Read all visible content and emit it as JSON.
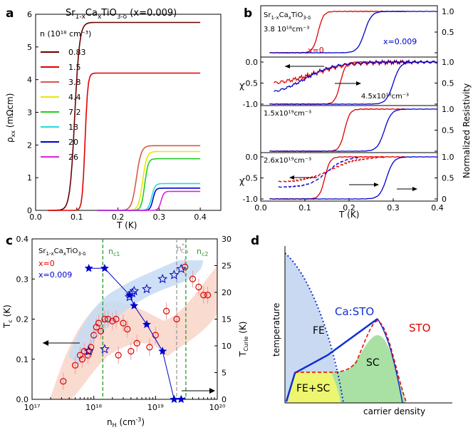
{
  "panel_labels": [
    "a",
    "b",
    "c",
    "d"
  ],
  "chart_data": [
    {
      "id": "a",
      "type": "line",
      "title": "Sr1-xCaxTiO3-δ (x=0.009)",
      "title_parts": {
        "base": "Sr",
        "sub1": "1-x",
        "mid": "Ca",
        "sub2": "x",
        "mid2": "TiO",
        "sub3": "3-δ",
        "tail": " (x=0.009)"
      },
      "xlabel": "T (K)",
      "ylabel": "ρxx (mΩcm)",
      "ylabel_parts": {
        "base": "ρ",
        "sub": "xx",
        "tail": " (mΩcm)"
      },
      "xlim": [
        0,
        0.45
      ],
      "ylim": [
        0,
        6
      ],
      "xticks": [
        0.0,
        0.1,
        0.2,
        0.3,
        0.4
      ],
      "xtick_labels": [
        "0.0",
        "0.1",
        "0.2",
        "0.3",
        "0.4"
      ],
      "yticks": [
        0,
        1,
        2,
        3,
        4,
        5,
        6
      ],
      "yticks_labels": [
        "0",
        "1",
        "2",
        "3",
        "4",
        "5",
        "6"
      ],
      "legend_title": "n (10¹⁸ cm⁻³)",
      "series": [
        {
          "name": "0.83",
          "color": "#6b0000",
          "tc": 0.095,
          "width": 0.035,
          "rn": 5.75,
          "xstart": 0.03
        },
        {
          "name": "1.5",
          "color": "#e00000",
          "tc": 0.12,
          "width": 0.02,
          "rn": 4.2,
          "xstart": 0.03
        },
        {
          "name": "3.8",
          "color": "#d45a4a",
          "tc": 0.245,
          "width": 0.035,
          "rn": 1.98,
          "xstart": 0.15
        },
        {
          "name": "4.4",
          "color": "#e8e800",
          "tc": 0.26,
          "width": 0.03,
          "rn": 1.8,
          "xstart": 0.15
        },
        {
          "name": "7.2",
          "color": "#22cc22",
          "tc": 0.265,
          "width": 0.025,
          "rn": 1.58,
          "xstart": 0.15
        },
        {
          "name": "13",
          "color": "#22dddd",
          "tc": 0.282,
          "width": 0.025,
          "rn": 0.82,
          "xstart": 0.15
        },
        {
          "name": "20",
          "color": "#0000cc",
          "tc": 0.285,
          "width": 0.02,
          "rn": 0.68,
          "xstart": 0.15
        },
        {
          "name": "26",
          "color": "#dd22dd",
          "tc": 0.305,
          "width": 0.02,
          "rn": 0.58,
          "xstart": 0.15
        }
      ]
    },
    {
      "id": "b",
      "type": "line",
      "title": "Sr1-xCaxTiO3-δ",
      "xlabel": "T (K)",
      "ylabel_left": "χ",
      "ylabel_right": "Normalized Resistivity",
      "xlim": [
        0,
        0.4
      ],
      "xticks": [
        0.0,
        0.1,
        0.2,
        0.3,
        0.4
      ],
      "xtick_labels": [
        "0.0",
        "0.1",
        "0.2",
        "0.3",
        "0.4"
      ],
      "left_ticks": [
        "0.0",
        "-0.5",
        "-1.0"
      ],
      "right_ticks": [
        "1.0",
        "0.5",
        "0"
      ],
      "subpanels": [
        {
          "label": "3.8 10¹⁸cm⁻³",
          "r_red_tc": 0.13,
          "r_blue_tc": 0.235,
          "annotations": [
            "x=0",
            "x=0.009"
          ],
          "chi": false
        },
        {
          "label": "4.5x10¹⁸cm⁻³",
          "r_red_tc": 0.18,
          "r_blue_tc": 0.3,
          "chi": true,
          "chi_red_tc": 0.17,
          "chi_blue_tc": 0.1
        },
        {
          "label": "1.5x10¹⁹cm⁻³",
          "r_red_tc": 0.19,
          "r_blue_tc": 0.28,
          "chi": false
        },
        {
          "label": "2.6x10¹⁹cm⁻³",
          "r_red_tc": 0.145,
          "r_blue_tc": 0.285,
          "chi": true,
          "chi_red_tc": 0.14,
          "chi_blue_tc": 0.145
        }
      ]
    },
    {
      "id": "c",
      "type": "scatter",
      "title": "Sr1-xCaxTiO3-δ",
      "xlabel": "nH (cm⁻³)",
      "xlabel_parts": {
        "base": "n",
        "sub": "H",
        "tail": " (cm",
        "sup": "-3",
        "end": ")"
      },
      "ylabel_left": "Tc (K)",
      "ylabel_right": "TCurie (K)",
      "xscale": "log",
      "xlim": [
        1e+17,
        1e+20
      ],
      "ylim": [
        0,
        0.4
      ],
      "ylim_right": [
        0,
        30
      ],
      "xtick_labels": [
        "10¹⁷",
        "10¹⁸",
        "10¹⁹",
        "10²⁰"
      ],
      "ytick_labels": [
        "0.0",
        "0.1",
        "0.2",
        "0.3",
        "0.4"
      ],
      "y2tick_labels": [
        "0",
        "5",
        "10",
        "15",
        "20",
        "25",
        "30"
      ],
      "legend": [
        "x=0",
        "x=0.009"
      ],
      "vlines": [
        {
          "label": "nc1",
          "x": 1.4e+18,
          "color": "#2a9a2a"
        },
        {
          "label": "n*Ca",
          "x": 2.2e+19,
          "color": "#999999"
        },
        {
          "label": "nc2",
          "x": 3.1e+19,
          "color": "#2a9a2a"
        }
      ],
      "series": [
        {
          "name": "x=0 Tc",
          "color": "#e00000",
          "marker": "circle",
          "x": [
            3.2e+17,
            5e+17,
            6e+17,
            6.5e+17,
            7e+17,
            8e+17,
            8.5e+17,
            9e+17,
            1e+18,
            1.1e+18,
            1.2e+18,
            1.3e+18,
            1.5e+18,
            1.7e+18,
            2e+18,
            2.3e+18,
            2.5e+18,
            3e+18,
            3.5e+18,
            4e+18,
            5e+18,
            8e+18,
            1e+19,
            1.5e+19,
            2.2e+19,
            3e+19,
            4e+19,
            5e+19,
            6e+19,
            7e+19
          ],
          "y": [
            0.045,
            0.085,
            0.11,
            0.1,
            0.12,
            0.11,
            0.12,
            0.13,
            0.16,
            0.18,
            0.19,
            0.17,
            0.2,
            0.2,
            0.195,
            0.2,
            0.11,
            0.19,
            0.175,
            0.12,
            0.14,
            0.13,
            0.16,
            0.22,
            0.2,
            0.33,
            0.3,
            0.28,
            0.26,
            0.26
          ]
        },
        {
          "name": "x=0.009 Tc",
          "color": "#0000cc",
          "marker": "star-open",
          "x": [
            8.3e+17,
            1.5e+18,
            3.8e+18,
            4.2e+18,
            4.5e+18,
            7.2e+18,
            1.3e+19,
            2e+19,
            2.6e+19
          ],
          "y": [
            0.12,
            0.125,
            0.255,
            0.265,
            0.27,
            0.275,
            0.3,
            0.31,
            0.325
          ]
        },
        {
          "name": "x=0.009 TCurie",
          "color": "#0000cc",
          "marker": "star-filled",
          "axis": "right",
          "x": [
            8.3e+17,
            1.5e+18,
            3.8e+18,
            4.5e+18,
            7.2e+18,
            1.3e+19,
            2e+19,
            2.6e+19
          ],
          "y": [
            24.5,
            24.5,
            19.5,
            17.5,
            14,
            9,
            0,
            0
          ]
        }
      ]
    },
    {
      "id": "d",
      "type": "diagram",
      "xlabel": "carrier density",
      "ylabel": "temperature",
      "region_labels": [
        "FE",
        "FE+SC",
        "SC"
      ],
      "curve_labels": [
        "Ca:STO",
        "STO"
      ]
    }
  ],
  "colors": {
    "red": "#e00000",
    "blue": "#0000cc",
    "green": "#2a9a2a",
    "fe_fill": "#c9d9f2",
    "fesc_fill": "#eef56f",
    "sc_fill": "#a9e0a4"
  }
}
